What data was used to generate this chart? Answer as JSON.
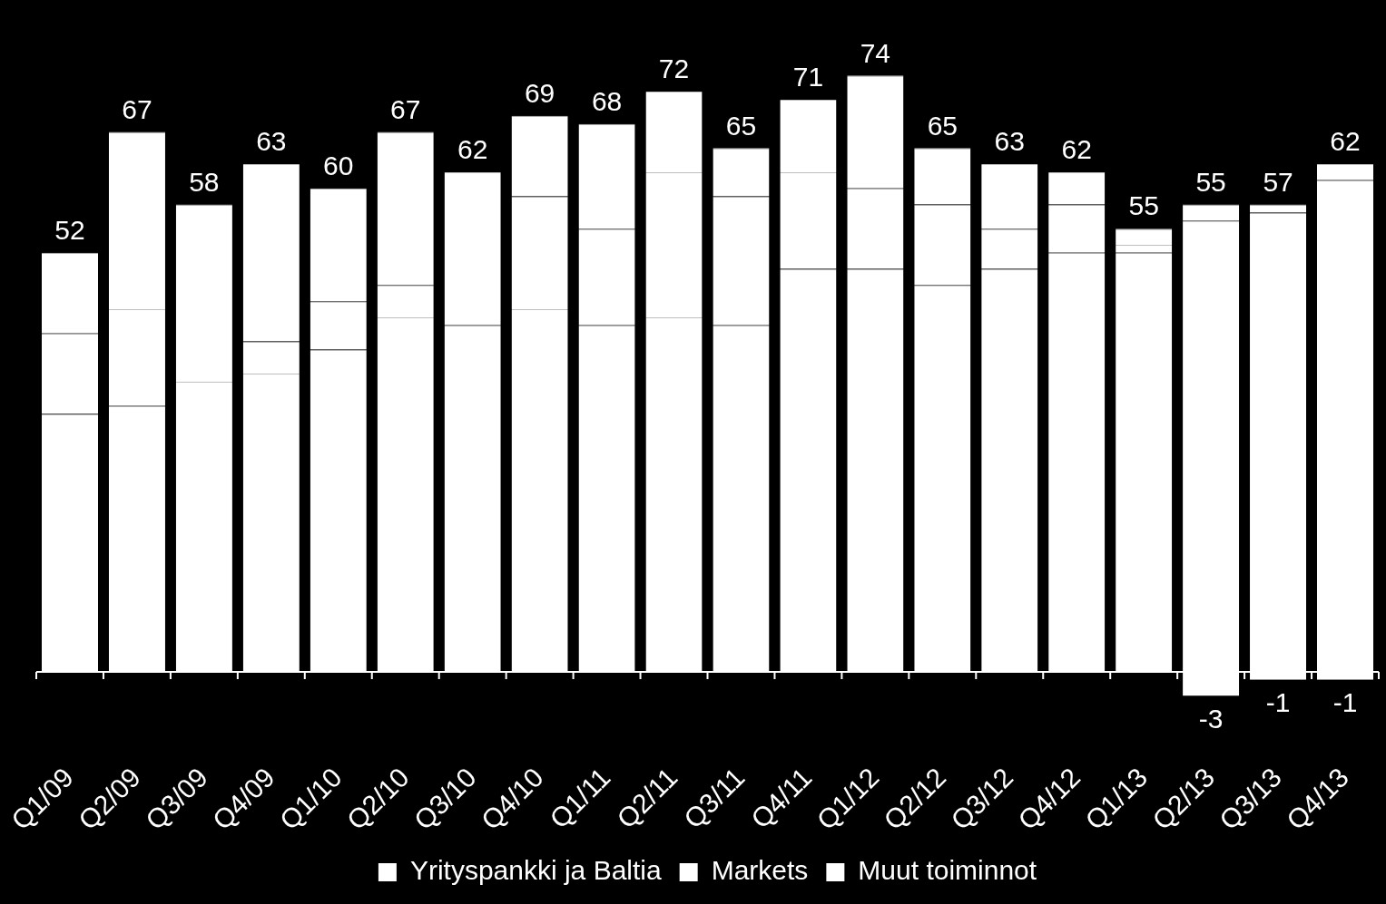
{
  "chart_data": {
    "type": "bar",
    "stacked": true,
    "legend": "bottom",
    "categories": [
      "Q1/09",
      "Q2/09",
      "Q3/09",
      "Q4/09",
      "Q1/10",
      "Q2/10",
      "Q3/10",
      "Q4/10",
      "Q1/11",
      "Q2/11",
      "Q3/11",
      "Q4/11",
      "Q1/12",
      "Q2/12",
      "Q3/12",
      "Q4/12",
      "Q1/13",
      "Q2/13",
      "Q3/13",
      "Q4/13"
    ],
    "series": [
      {
        "name": "Yrityspankki ja Baltia",
        "color": "#ffffff",
        "values": [
          32,
          33,
          36,
          37,
          40,
          44,
          43,
          45,
          43,
          44,
          43,
          50,
          50,
          48,
          50,
          52,
          52,
          56,
          57,
          61
        ]
      },
      {
        "name": "Markets",
        "color": "#ffffff",
        "values": [
          10,
          12,
          22,
          4,
          6,
          4,
          19,
          14,
          12,
          18,
          16,
          12,
          10,
          10,
          5,
          6,
          1,
          2,
          1,
          2
        ]
      },
      {
        "name": "Muut toiminnot",
        "color": "#ffffff",
        "values": [
          10,
          22,
          0,
          22,
          14,
          19,
          0,
          10,
          13,
          10,
          6,
          9,
          14,
          7,
          8,
          4,
          2,
          -3,
          -1,
          -1
        ],
        "value_labels": [
          null,
          null,
          null,
          null,
          null,
          null,
          null,
          null,
          null,
          null,
          null,
          null,
          null,
          null,
          null,
          null,
          null,
          "-3",
          "-1",
          "-1"
        ]
      }
    ],
    "totals": [
      "52",
      "67",
      "58",
      "63",
      "60",
      "67",
      "62",
      "69",
      "68",
      "72",
      "65",
      "71",
      "74",
      "65",
      "63",
      "62",
      "55",
      "55",
      "57",
      "62"
    ]
  }
}
